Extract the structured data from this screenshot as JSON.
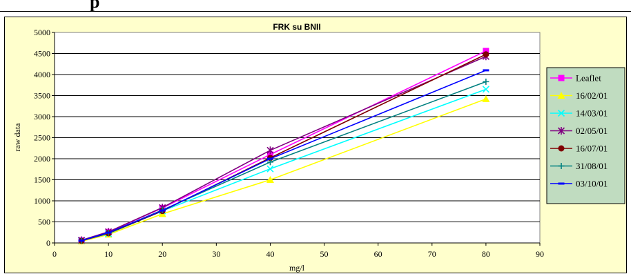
{
  "page": {
    "heading_fragment": "p"
  },
  "chart_data": {
    "type": "line",
    "title": "FRK su BNII",
    "xlabel": "mg/l",
    "ylabel": "raw data",
    "xlim": [
      0,
      90
    ],
    "ylim": [
      0,
      5000
    ],
    "xticks": [
      0,
      10,
      20,
      30,
      40,
      50,
      60,
      70,
      80,
      90
    ],
    "yticks": [
      0,
      500,
      1000,
      1500,
      2000,
      2500,
      3000,
      3500,
      4000,
      4500,
      5000
    ],
    "grid": "horizontal",
    "legend_position": "right",
    "x": [
      5,
      10,
      20,
      40,
      80
    ],
    "series": [
      {
        "name": "Leaflet",
        "color": "#ff00ff",
        "marker": "square",
        "values": [
          60,
          260,
          830,
          2100,
          4560
        ]
      },
      {
        "name": "16/02/01",
        "color": "#ffff00",
        "marker": "triangle",
        "values": [
          40,
          200,
          690,
          1500,
          3420
        ]
      },
      {
        "name": "14/03/01",
        "color": "#00ffff",
        "marker": "x",
        "values": [
          55,
          220,
          760,
          1760,
          3650
        ]
      },
      {
        "name": "02/05/01",
        "color": "#800080",
        "marker": "star",
        "values": [
          65,
          265,
          840,
          2200,
          4430
        ]
      },
      {
        "name": "16/07/01",
        "color": "#800000",
        "marker": "circle",
        "values": [
          50,
          230,
          760,
          2020,
          4480
        ]
      },
      {
        "name": "31/08/01",
        "color": "#008080",
        "marker": "plus",
        "values": [
          55,
          240,
          780,
          1920,
          3830
        ]
      },
      {
        "name": "03/10/01",
        "color": "#0000ff",
        "marker": "dash",
        "values": [
          55,
          245,
          770,
          2000,
          4100
        ]
      }
    ]
  }
}
